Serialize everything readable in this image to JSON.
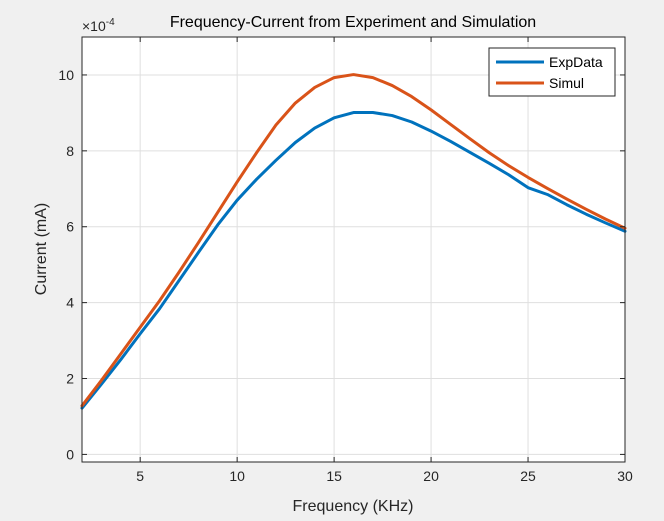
{
  "chart_data": {
    "type": "line",
    "title": "Frequency-Current from Experiment and Simulation",
    "xlabel": "Frequency (KHz)",
    "ylabel": "Current (mA)",
    "y_exponent_label": "×10",
    "y_exponent_power": "-4",
    "xlim": [
      2,
      30
    ],
    "ylim": [
      -0.2,
      11
    ],
    "xticks": [
      5,
      10,
      15,
      20,
      25,
      30
    ],
    "yticks": [
      0,
      2,
      4,
      6,
      8,
      10
    ],
    "grid": true,
    "legend_position": "top-right",
    "x": [
      2,
      3,
      4,
      5,
      6,
      7,
      8,
      9,
      10,
      11,
      12,
      13,
      14,
      15,
      16,
      17,
      18,
      19,
      20,
      21,
      22,
      23,
      24,
      25,
      26,
      27,
      28,
      29,
      30
    ],
    "series": [
      {
        "name": "ExpData",
        "color": "#0072bd",
        "values": [
          1.22,
          1.85,
          2.5,
          3.18,
          3.84,
          4.58,
          5.32,
          6.05,
          6.7,
          7.25,
          7.75,
          8.22,
          8.6,
          8.87,
          9.01,
          9.01,
          8.93,
          8.76,
          8.52,
          8.25,
          7.96,
          7.67,
          7.37,
          7.03,
          6.85,
          6.58,
          6.33,
          6.1,
          5.88
        ]
      },
      {
        "name": "Simul",
        "color": "#d95319",
        "values": [
          1.28,
          1.95,
          2.65,
          3.35,
          4.05,
          4.8,
          5.58,
          6.38,
          7.18,
          7.95,
          8.68,
          9.26,
          9.67,
          9.93,
          10.01,
          9.93,
          9.72,
          9.43,
          9.08,
          8.7,
          8.32,
          7.95,
          7.61,
          7.3,
          7.01,
          6.73,
          6.46,
          6.2,
          5.96
        ]
      }
    ]
  }
}
